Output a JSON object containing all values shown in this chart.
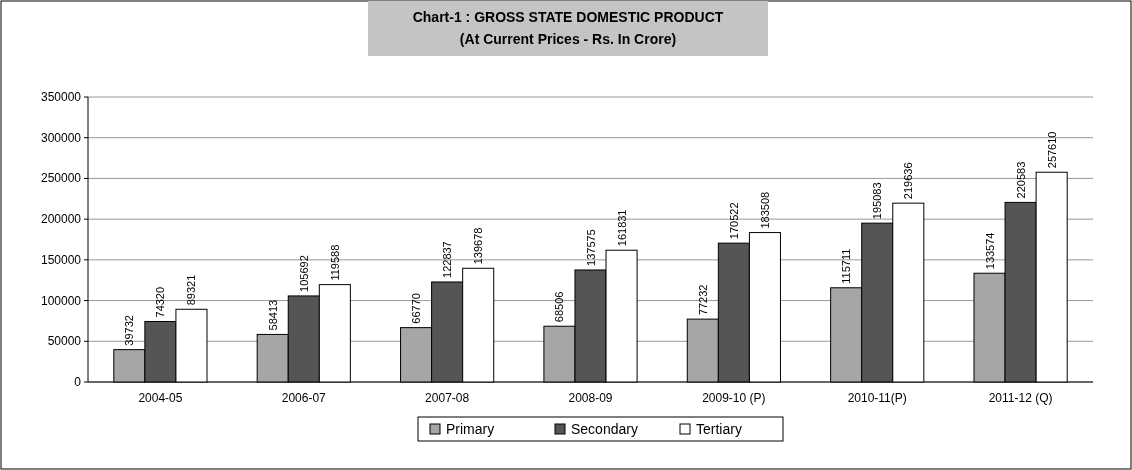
{
  "chart_data": {
    "type": "bar",
    "title": "Chart-1 : GROSS STATE DOMESTIC PRODUCT",
    "subtitle": "(At Current Prices - Rs. In Crore)",
    "categories": [
      "2004-05",
      "2006-07",
      "2007-08",
      "2008-09",
      "2009-10 (P)",
      "2010-11(P)",
      "2011-12 (Q)"
    ],
    "series": [
      {
        "name": "Primary",
        "color": "#a6a6a6",
        "values": [
          39732,
          58413,
          66770,
          68506,
          77232,
          115711,
          133574
        ]
      },
      {
        "name": "Secondary",
        "color": "#555555",
        "values": [
          74320,
          105692,
          122837,
          137575,
          170522,
          195083,
          220583
        ]
      },
      {
        "name": "Tertiary",
        "color": "#ffffff",
        "values": [
          89321,
          119588,
          139678,
          161831,
          183508,
          219636,
          257610
        ]
      }
    ],
    "ylim": [
      0,
      350000
    ],
    "yticks": [
      0,
      50000,
      100000,
      150000,
      200000,
      250000,
      300000,
      350000
    ],
    "grid": "y",
    "legend": "bottom",
    "data_labels": true
  }
}
